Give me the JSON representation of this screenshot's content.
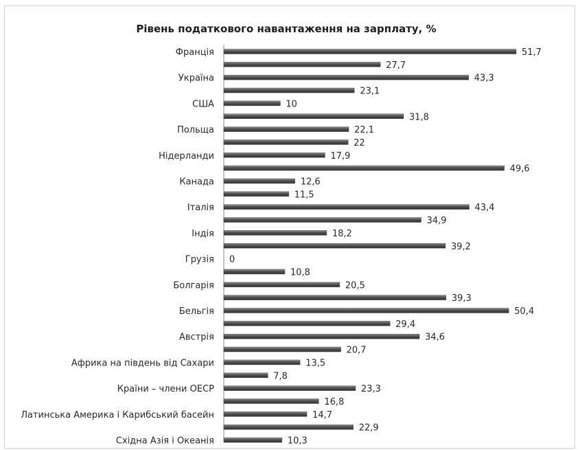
{
  "chart_data": {
    "type": "bar",
    "orientation": "horizontal",
    "title": "Рівень податкового  навантаження на зарплату, %",
    "xlim": [
      0,
      55
    ],
    "grid": false,
    "legend": "none",
    "bar_color": "#555555",
    "rows": [
      {
        "label": "Франція",
        "value": 51.7,
        "display": "51,7"
      },
      {
        "label": "",
        "value": 27.7,
        "display": "27,7"
      },
      {
        "label": "Україна",
        "value": 43.3,
        "display": "43,3"
      },
      {
        "label": "",
        "value": 23.1,
        "display": "23,1"
      },
      {
        "label": "США",
        "value": 10,
        "display": "10"
      },
      {
        "label": "",
        "value": 31.8,
        "display": "31,8"
      },
      {
        "label": "Польща",
        "value": 22.1,
        "display": "22,1"
      },
      {
        "label": "",
        "value": 22,
        "display": "22"
      },
      {
        "label": "Нідерланди",
        "value": 17.9,
        "display": "17,9"
      },
      {
        "label": "",
        "value": 49.6,
        "display": "49,6"
      },
      {
        "label": "Канада",
        "value": 12.6,
        "display": "12,6"
      },
      {
        "label": "",
        "value": 11.5,
        "display": "11,5"
      },
      {
        "label": "Італія",
        "value": 43.4,
        "display": "43,4"
      },
      {
        "label": "",
        "value": 34.9,
        "display": "34,9"
      },
      {
        "label": "Індія",
        "value": 18.2,
        "display": "18,2"
      },
      {
        "label": "",
        "value": 39.2,
        "display": "39,2"
      },
      {
        "label": "Грузія",
        "value": 0,
        "display": "0"
      },
      {
        "label": "",
        "value": 10.8,
        "display": "10,8"
      },
      {
        "label": "Болгарія",
        "value": 20.5,
        "display": "20,5"
      },
      {
        "label": "",
        "value": 39.3,
        "display": "39,3"
      },
      {
        "label": "Бельгія",
        "value": 50.4,
        "display": "50,4"
      },
      {
        "label": "",
        "value": 29.4,
        "display": "29,4"
      },
      {
        "label": "Австрія",
        "value": 34.6,
        "display": "34,6"
      },
      {
        "label": "",
        "value": 20.7,
        "display": "20,7"
      },
      {
        "label": "Африка на південь від Сахари",
        "value": 13.5,
        "display": "13,5"
      },
      {
        "label": "",
        "value": 7.8,
        "display": "7,8"
      },
      {
        "label": "Країни – члени ОЕСР",
        "value": 23.3,
        "display": "23,3"
      },
      {
        "label": "",
        "value": 16.8,
        "display": "16,8"
      },
      {
        "label": "Латинська Америка і Карибський басейн",
        "value": 14.7,
        "display": "14,7"
      },
      {
        "label": "",
        "value": 22.9,
        "display": "22,9"
      },
      {
        "label": "Східна Азія і Океанія",
        "value": 10.3,
        "display": "10,3"
      }
    ]
  }
}
